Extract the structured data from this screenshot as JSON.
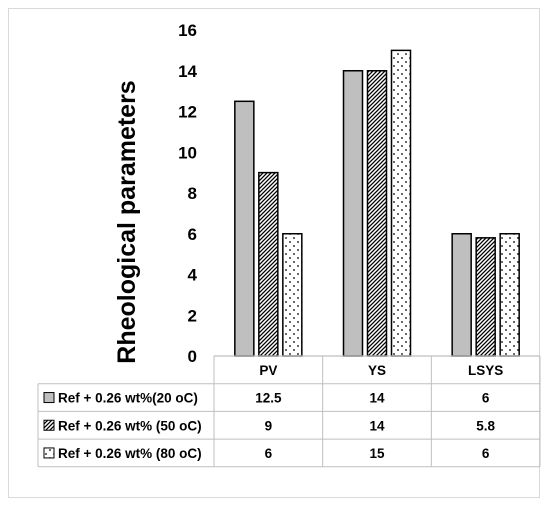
{
  "chart_data": {
    "type": "bar",
    "title": "",
    "xlabel": "",
    "ylabel": "Rheological parameters",
    "ylim": [
      0,
      16
    ],
    "yticks": [
      0,
      2,
      4,
      6,
      8,
      10,
      12,
      14,
      16
    ],
    "grid": false,
    "legend_placement": "data-table",
    "categories": [
      "PV",
      "YS",
      "LSYS"
    ],
    "series": [
      {
        "name": "Ref + 0.26 wt%(20 oC)",
        "values": [
          12.5,
          14,
          6
        ],
        "labels": [
          "12.5",
          "14",
          "6"
        ],
        "pattern": "solid",
        "color": "#bfbfbf"
      },
      {
        "name": "Ref + 0.26 wt% (50 oC)",
        "values": [
          9,
          14,
          5.8
        ],
        "labels": [
          "9",
          "14",
          "5.8"
        ],
        "pattern": "diagonal-hatch",
        "color": "#000000"
      },
      {
        "name": "Ref + 0.26 wt% (80 oC)",
        "values": [
          6,
          15,
          6
        ],
        "labels": [
          "6",
          "15",
          "6"
        ],
        "pattern": "dots",
        "color": "#000000"
      }
    ]
  }
}
